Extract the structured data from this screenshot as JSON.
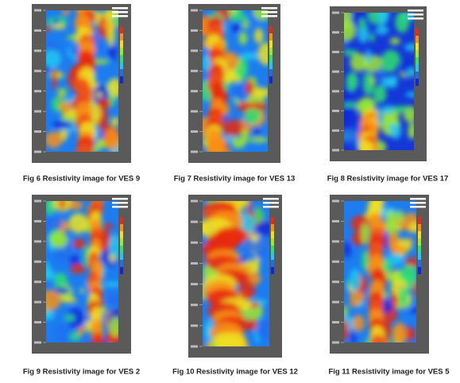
{
  "figures": [
    {
      "caption": "Fig 6 Resistivity image for VES 9"
    },
    {
      "caption": "Fig 7 Resistivity image for VES 13"
    },
    {
      "caption": "Fig 8 Resistivity image for VES 17"
    },
    {
      "caption": "Fig 9 Resistivity image for VES 2"
    },
    {
      "caption": "Fig 10 Resistivity image for VES 12"
    },
    {
      "caption": "Fig 11 Resistivity image for VES 5"
    }
  ]
}
